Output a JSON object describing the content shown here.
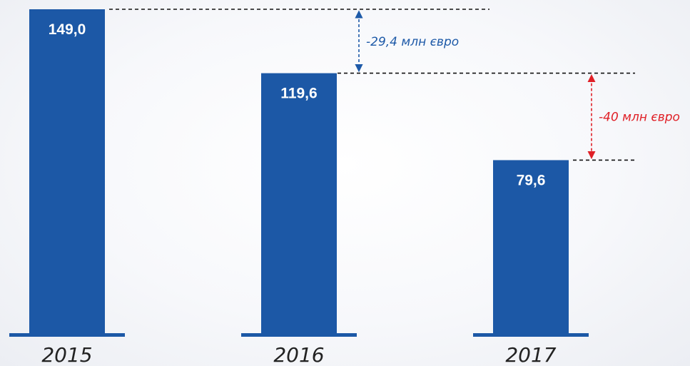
{
  "chart_data": {
    "type": "bar",
    "categories": [
      "2015",
      "2016",
      "2017"
    ],
    "values": [
      149.0,
      119.6,
      79.6
    ],
    "value_labels": [
      "149,0",
      "119,6",
      "79,6"
    ],
    "title": "",
    "xlabel": "",
    "ylabel": "",
    "grid": false,
    "legend": "none",
    "annotations": [
      {
        "text": "-29,4 млн євро",
        "from": 149.0,
        "to": 119.6,
        "color": "#1e5aa8"
      },
      {
        "text": "-40 млн євро",
        "from": 119.6,
        "to": 79.6,
        "color": "#e01f26"
      }
    ]
  },
  "colors": {
    "bar": "#1c58a6",
    "baseline": "#1c58a6",
    "guide": "#111111",
    "annotation_blue": "#1e5aa8",
    "annotation_red": "#e01f26"
  }
}
